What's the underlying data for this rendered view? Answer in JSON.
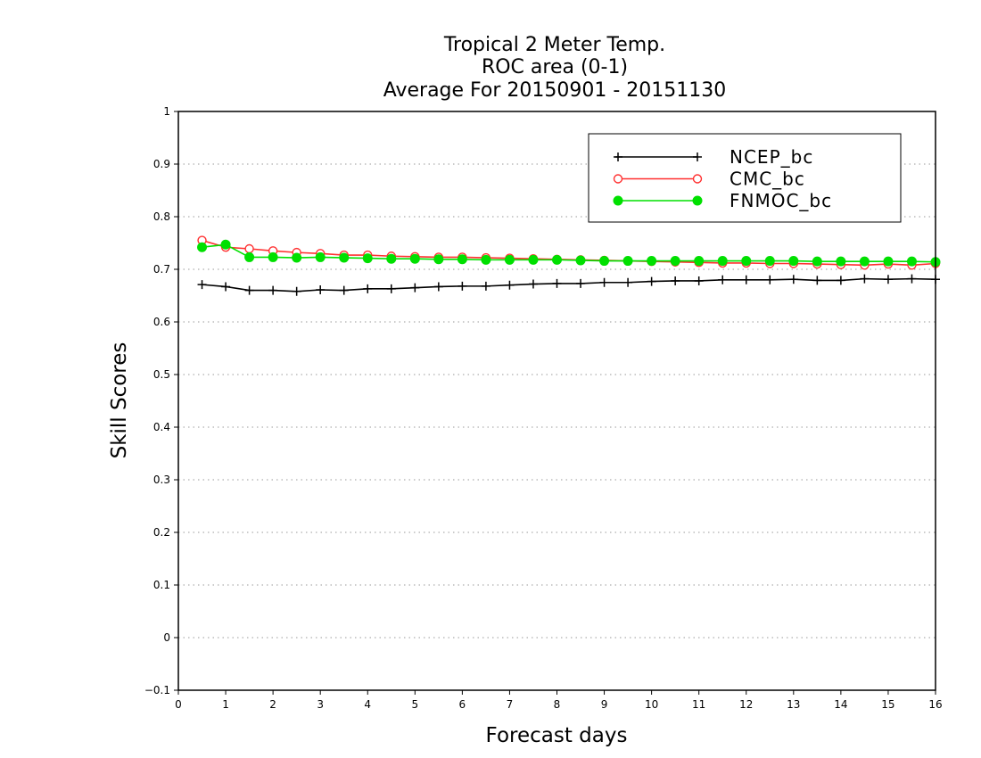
{
  "chart_data": {
    "type": "line",
    "title_lines": [
      "Tropical 2 Meter Temp.",
      "ROC area (0-1)",
      "Average For 20150901 - 20151130"
    ],
    "xlabel": "Forecast days",
    "ylabel": "Skill Scores",
    "xlim": [
      0,
      16
    ],
    "ylim": [
      -0.1,
      1
    ],
    "xticks": [
      0,
      1,
      2,
      3,
      4,
      5,
      6,
      7,
      8,
      9,
      10,
      11,
      12,
      13,
      14,
      15,
      16
    ],
    "xtick_labels": [
      "0",
      "1",
      "2",
      "3",
      "4",
      "5",
      "6",
      "7",
      "8",
      "9",
      "10",
      "11",
      "12",
      "13",
      "14",
      "15",
      "16"
    ],
    "yticks": [
      -0.1,
      0,
      0.1,
      0.2,
      0.3,
      0.4,
      0.5,
      0.6,
      0.7,
      0.8,
      0.9,
      1
    ],
    "ytick_labels": [
      "−0.1",
      "0",
      "0.1",
      "0.2",
      "0.3",
      "0.4",
      "0.5",
      "0.6",
      "0.7",
      "0.8",
      "0.9",
      "1"
    ],
    "grid": "horizontal dotted",
    "legend_position": "top-right",
    "x": [
      0.5,
      1,
      1.5,
      2,
      2.5,
      3,
      3.5,
      4,
      4.5,
      5,
      5.5,
      6,
      6.5,
      7,
      7.5,
      8,
      8.5,
      9,
      9.5,
      10,
      10.5,
      11,
      11.5,
      12,
      12.5,
      13,
      13.5,
      14,
      14.5,
      15,
      15.5,
      16
    ],
    "series": [
      {
        "name": "NCEP_bc",
        "color": "#000000",
        "marker": "plus",
        "values": [
          0.671,
          0.667,
          0.66,
          0.66,
          0.658,
          0.661,
          0.66,
          0.663,
          0.663,
          0.665,
          0.667,
          0.668,
          0.668,
          0.67,
          0.672,
          0.673,
          0.673,
          0.675,
          0.675,
          0.677,
          0.678,
          0.678,
          0.68,
          0.68,
          0.68,
          0.681,
          0.679,
          0.679,
          0.682,
          0.681,
          0.682,
          0.681
        ]
      },
      {
        "name": "CMC_bc",
        "color": "#ff3030",
        "marker": "open-circle",
        "values": [
          0.755,
          0.742,
          0.739,
          0.735,
          0.732,
          0.73,
          0.727,
          0.727,
          0.725,
          0.724,
          0.723,
          0.723,
          0.722,
          0.721,
          0.72,
          0.719,
          0.718,
          0.717,
          0.716,
          0.715,
          0.714,
          0.713,
          0.712,
          0.712,
          0.711,
          0.711,
          0.71,
          0.709,
          0.708,
          0.71,
          0.708,
          0.711
        ]
      },
      {
        "name": "FNMOC_bc",
        "color": "#00e000",
        "marker": "filled-circle",
        "values": [
          0.742,
          0.747,
          0.723,
          0.723,
          0.722,
          0.723,
          0.722,
          0.721,
          0.72,
          0.72,
          0.719,
          0.719,
          0.718,
          0.718,
          0.718,
          0.718,
          0.717,
          0.716,
          0.716,
          0.716,
          0.716,
          0.716,
          0.716,
          0.716,
          0.716,
          0.716,
          0.715,
          0.715,
          0.715,
          0.715,
          0.715,
          0.714
        ]
      }
    ]
  }
}
